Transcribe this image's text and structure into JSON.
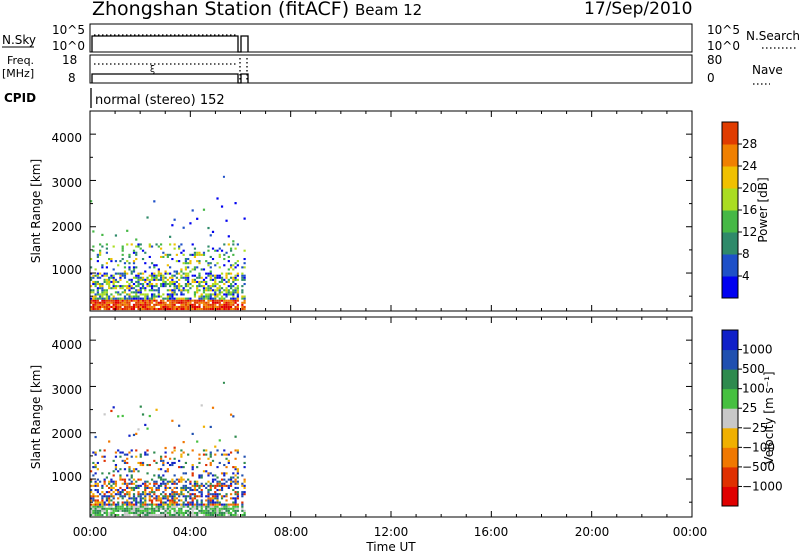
{
  "header": {
    "station_title": "Zhongshan Station (fitACF)",
    "beam_label": "Beam 12",
    "date_label": "17/Sep/2010"
  },
  "top_panels": {
    "nsky": {
      "label": "N.Sky",
      "ticks": [
        "10^5",
        "10^0"
      ],
      "right_ticks": [
        "10^5",
        "10^0"
      ],
      "right_label": "N.Search"
    },
    "freq": {
      "label_line1": "Freq.",
      "label_line2": "[MHz]",
      "ticks": [
        "18",
        "8"
      ],
      "right_ticks": [
        "80",
        "0"
      ],
      "right_label": "Nave"
    },
    "cpid": {
      "label": "CPID",
      "mode_text": "normal (stereo) 152"
    }
  },
  "colors": {
    "power_scale": [
      "#0000f0",
      "#1e50c8",
      "#2f8a6a",
      "#46b846",
      "#aadd22",
      "#f0c000",
      "#f08000",
      "#e03c00",
      "#e00000"
    ],
    "velocity_scale": [
      "#1020c8",
      "#2050b0",
      "#2e8a4e",
      "#46c040",
      "#c8c8c8",
      "#f0b000",
      "#f07800",
      "#e03000",
      "#e00000"
    ]
  },
  "chart_data": [
    {
      "type": "heatmap",
      "name": "power",
      "ylabel": "Slant Range [km]",
      "xlim": [
        "00:00",
        "24:00"
      ],
      "ylim": [
        180,
        4500
      ],
      "yticks": [
        "1000",
        "2000",
        "3000",
        "4000"
      ],
      "colorbar": {
        "label": "Power [dB]",
        "ticks": [
          "4",
          "8",
          "12",
          "16",
          "20",
          "24",
          "28"
        ],
        "range": [
          0,
          32
        ]
      },
      "data_extent_ut_hours": [
        0.0,
        6.2
      ]
    },
    {
      "type": "heatmap",
      "name": "velocity",
      "ylabel": "Slant Range [km]",
      "xlabel": "Time UT",
      "xticks": [
        "00:00",
        "04:00",
        "08:00",
        "12:00",
        "16:00",
        "20:00",
        "00:00"
      ],
      "xlim": [
        "00:00",
        "24:00"
      ],
      "ylim": [
        180,
        4500
      ],
      "yticks": [
        "1000",
        "2000",
        "3000",
        "4000"
      ],
      "colorbar": {
        "label": "Velocity [m s⁻¹]",
        "ticks": [
          "1000",
          "500",
          "100",
          "25",
          "−25",
          "−100",
          "−500",
          "−1000"
        ]
      },
      "data_extent_ut_hours": [
        0.0,
        6.2
      ]
    }
  ]
}
